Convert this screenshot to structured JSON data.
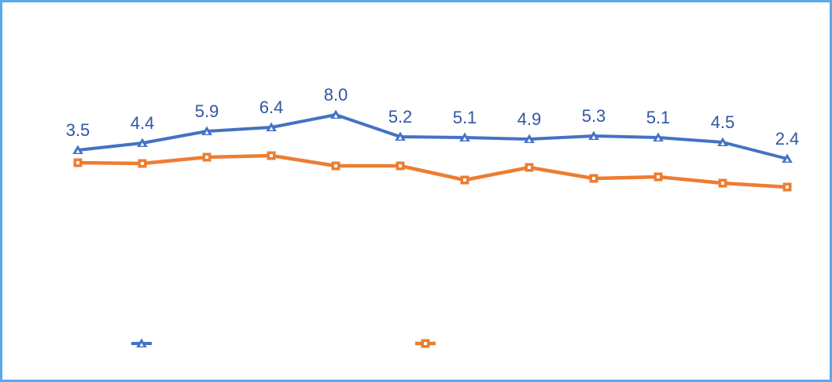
{
  "window": {
    "background_color": "#FFFFFF",
    "border_color": "#5AA9E8"
  },
  "chart_data": {
    "type": "line",
    "title": "",
    "xlabel": "",
    "ylabel": "",
    "x": [
      1,
      2,
      3,
      4,
      5,
      6,
      7,
      8,
      9,
      10,
      11,
      12
    ],
    "x_tick_labels_visible": false,
    "y_axis_visible": false,
    "grid": false,
    "ylim": [
      -2,
      9
    ],
    "value_label_color": "#3156A5",
    "series": [
      {
        "name": "blue-triangle-series",
        "color": "#4472C4",
        "marker": "triangle",
        "marker_inner_color": "#FFFFFF",
        "values": [
          3.5,
          4.4,
          5.9,
          6.4,
          8.0,
          5.2,
          5.1,
          4.9,
          5.3,
          5.1,
          4.5,
          2.4
        ],
        "data_labels": [
          "3.5",
          "4.4",
          "5.9",
          "6.4",
          "8.0",
          "5.2",
          "5.1",
          "4.9",
          "5.3",
          "5.1",
          "4.5",
          "2.4"
        ],
        "values_estimated": false
      },
      {
        "name": "orange-square-series",
        "color": "#ED7D31",
        "marker": "square",
        "marker_inner_color": "#FFFFFF",
        "values": [
          1.9,
          1.8,
          2.6,
          2.8,
          1.5,
          1.5,
          -0.3,
          1.3,
          -0.1,
          0.1,
          -0.7,
          -1.2
        ],
        "data_labels": [],
        "values_estimated": true
      }
    ],
    "legend": {
      "position": "bottom",
      "labels_visible": false,
      "entries": [
        {
          "series_index": 0,
          "marker": "triangle",
          "color": "#4472C4",
          "label": ""
        },
        {
          "series_index": 1,
          "marker": "square",
          "color": "#ED7D31",
          "label": ""
        }
      ]
    }
  }
}
